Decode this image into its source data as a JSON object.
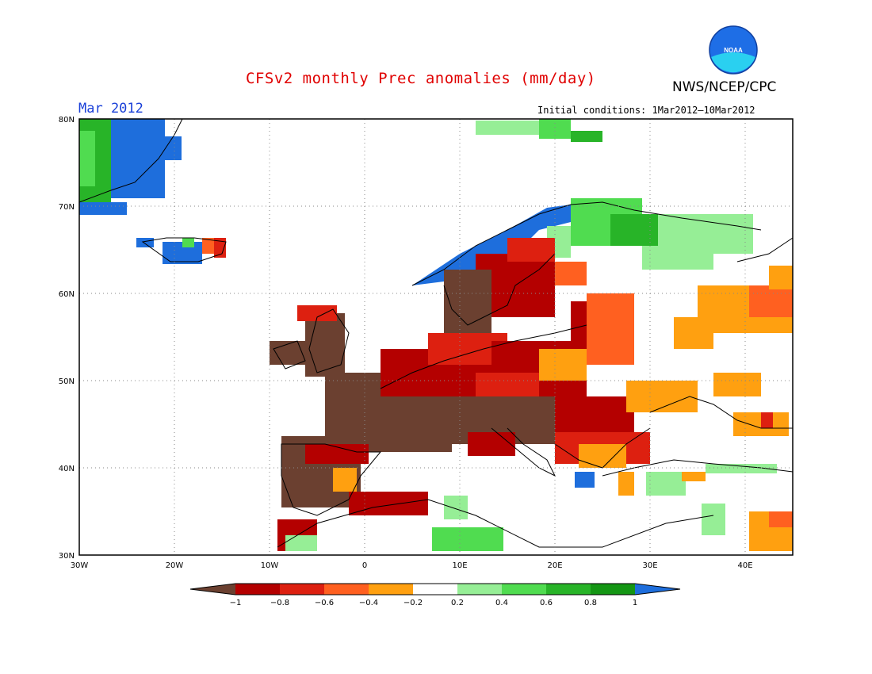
{
  "header": {
    "title": "CFSv2 monthly Prec anomalies (mm/day)",
    "agency": "NWS/NCEP/CPC",
    "month": "Mar 2012",
    "initial_conditions": "Initial conditions: 1Mar2012–10Mar2012"
  },
  "logo": {
    "text": "NOAA"
  },
  "map": {
    "lon_range": [
      -30,
      45
    ],
    "lat_range": [
      30,
      80
    ],
    "lat_ticks": [
      "80N",
      "70N",
      "60N",
      "50N",
      "40N",
      "30N"
    ],
    "lon_ticks": [
      "30W",
      "20W",
      "10W",
      "0",
      "10E",
      "20E",
      "30E",
      "40E"
    ],
    "grid": "dotted"
  },
  "colorbar": {
    "labels": [
      "−1",
      "−0.8",
      "−0.6",
      "−0.4",
      "−0.2",
      "0.2",
      "0.4",
      "0.6",
      "0.8",
      "1"
    ],
    "colors": [
      "#6b4030",
      "#b40000",
      "#dd2010",
      "#ff6020",
      "#ffa010",
      "#ffffff",
      "#96ee96",
      "#50dc50",
      "#28b428",
      "#149614",
      "#1e6edc"
    ]
  }
}
